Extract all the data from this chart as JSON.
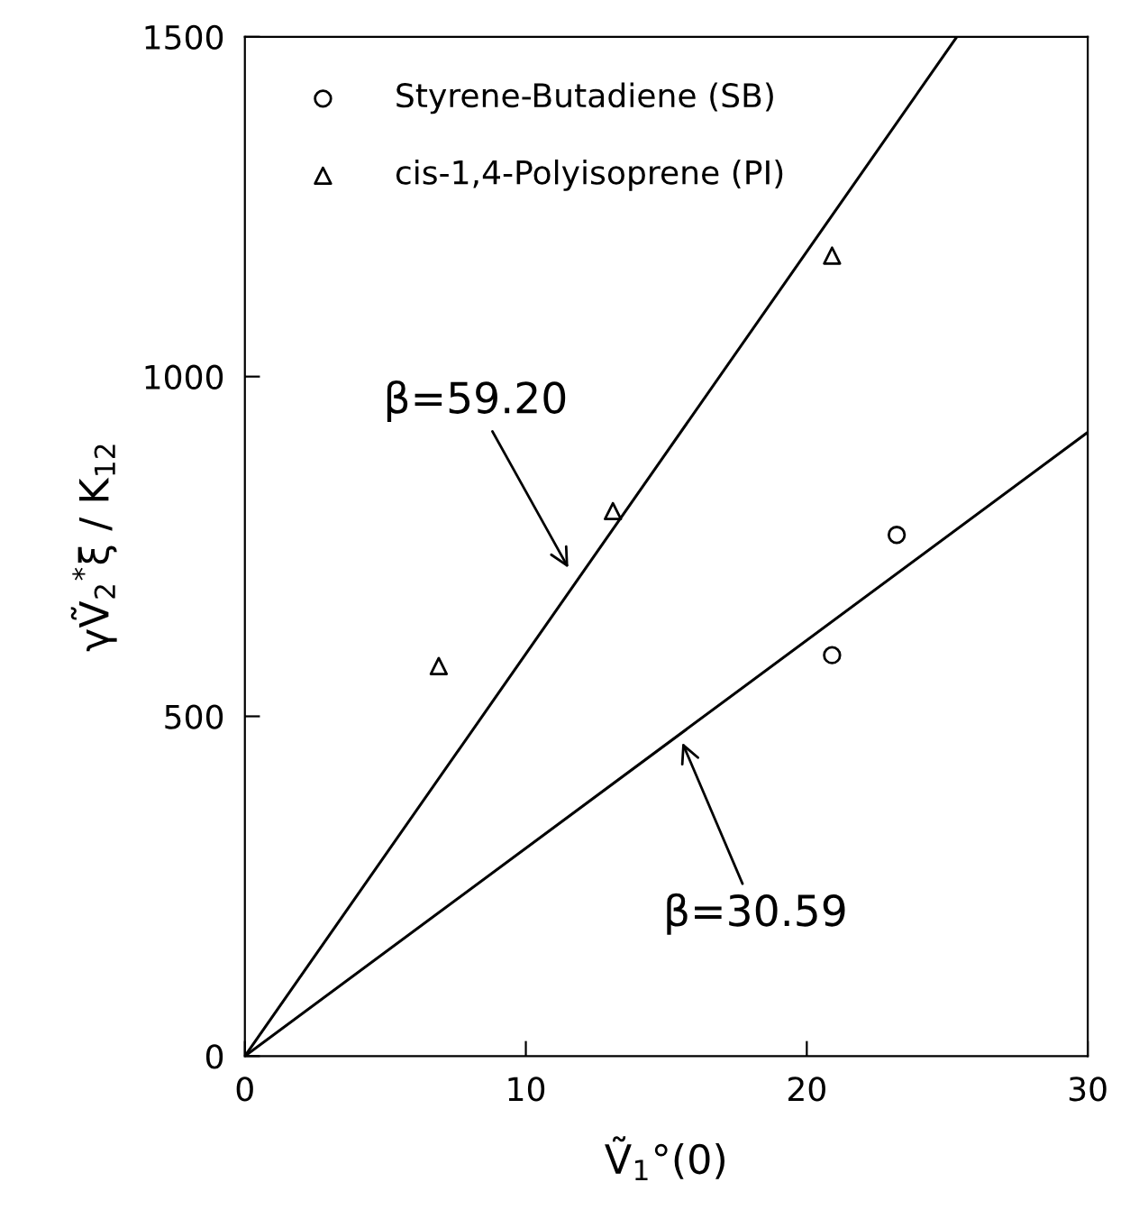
{
  "chart_data": {
    "type": "scatter",
    "xlabel": "Ṽ$_{1}$°(0)",
    "ylabel": "γṼ$_{2}$$^{*}$ξ / K$_{12}$",
    "xlim": [
      0,
      30
    ],
    "xticks": [
      0,
      10,
      20,
      30
    ],
    "ylim": [
      0,
      1500
    ],
    "yticks": [
      0,
      500,
      1000,
      1500
    ],
    "legend": "top left",
    "grid": false,
    "series": [
      {
        "name": "Styrene-Butadiene (SB)",
        "marker": "circle",
        "color": "#000000",
        "x": [
          20.9,
          23.2
        ],
        "values": [
          590,
          767
        ]
      },
      {
        "name": "cis-1,4-Polyisoprene (PI)",
        "marker": "triangle",
        "color": "#000000",
        "x": [
          6.9,
          13.1,
          20.9
        ],
        "values": [
          574,
          802,
          1178
        ]
      },
      {
        "type": "line",
        "marker": "none",
        "line_style": "solid",
        "color": "#000000",
        "x": [
          0,
          25.34
        ],
        "values": [
          0,
          1500
        ]
      },
      {
        "type": "line",
        "marker": "none",
        "line_style": "solid",
        "color": "#000000",
        "x": [
          0,
          30
        ],
        "values": [
          0,
          918
        ]
      }
    ],
    "annotations": [
      {
        "text": "β=59.20",
        "x": 11.6,
        "y": 712
      },
      {
        "text": "β=30.59",
        "x": 15.5,
        "y": 468
      }
    ]
  }
}
